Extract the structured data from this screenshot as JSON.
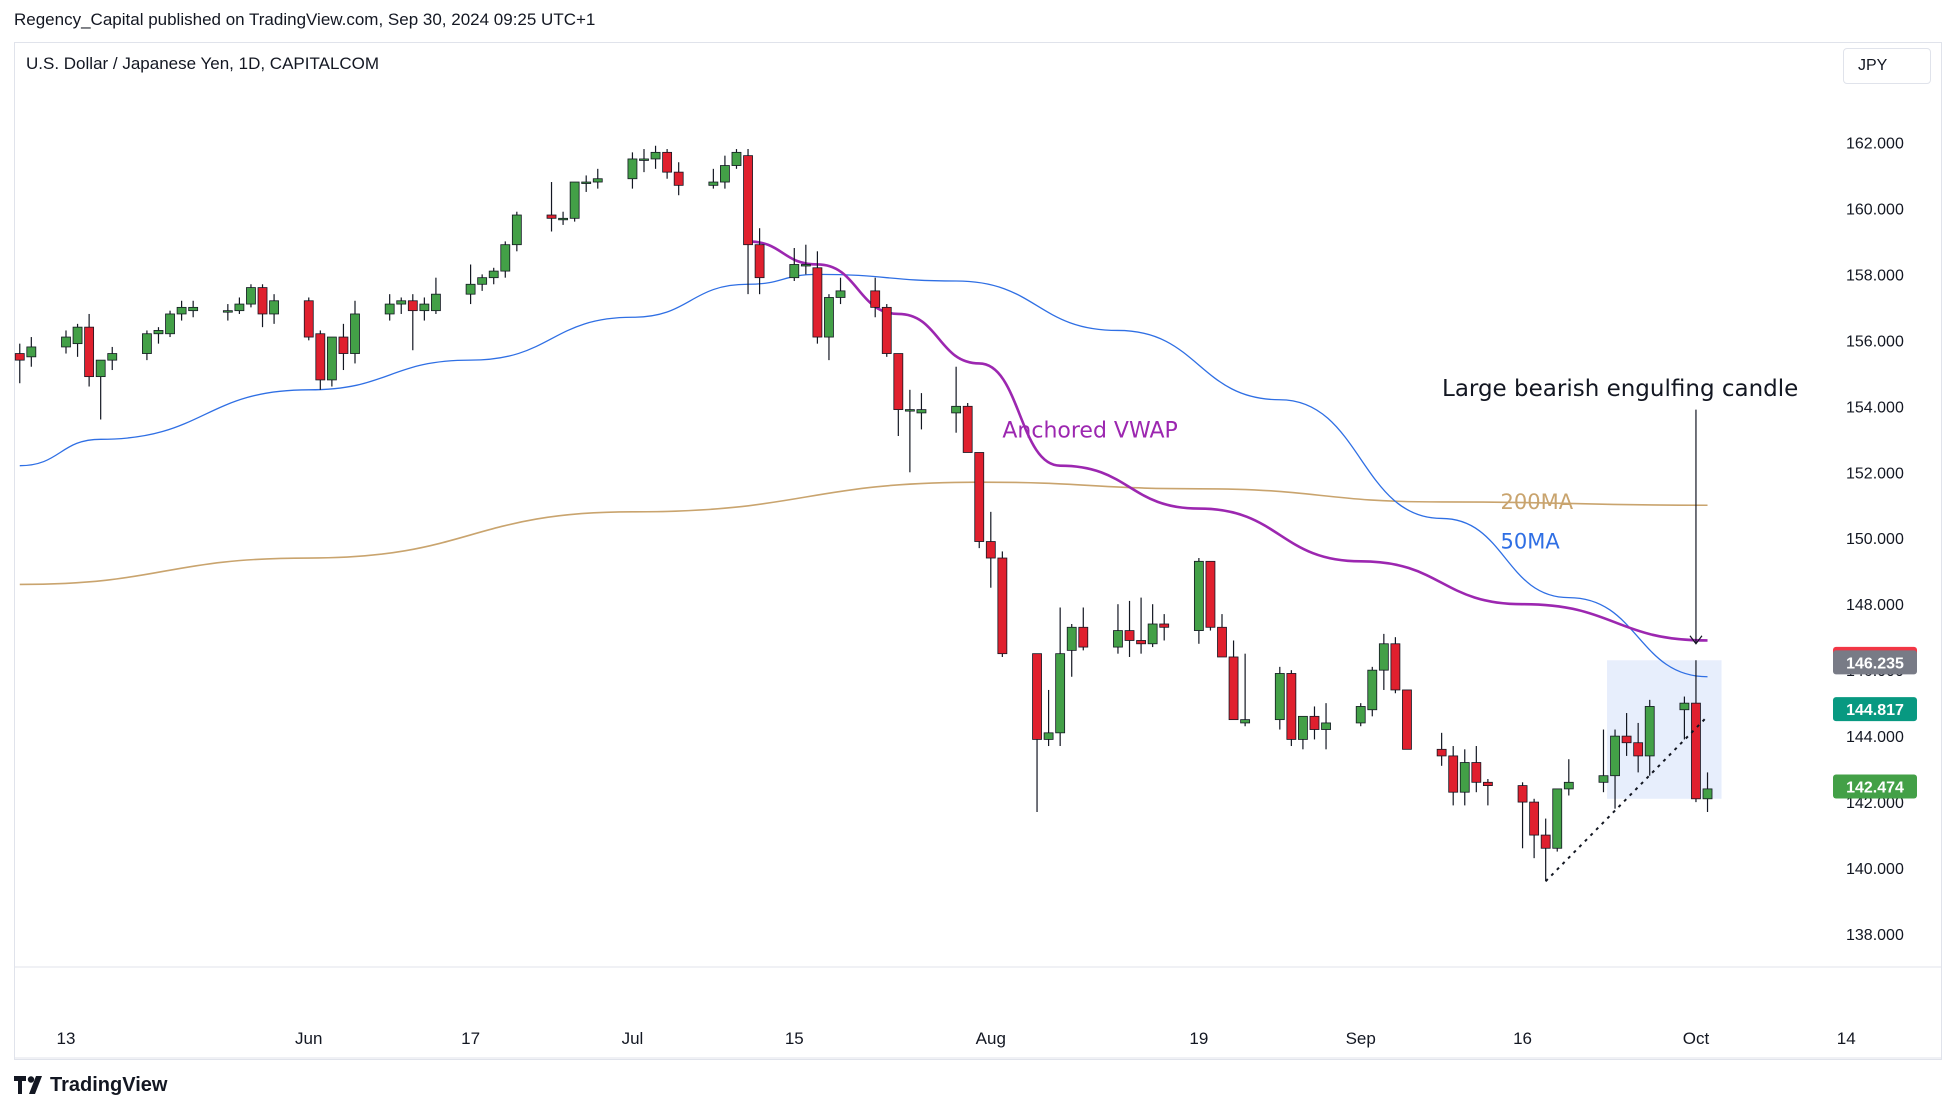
{
  "header": {
    "published": "Regency_Capital published on TradingView.com, Sep 30, 2024 09:25 UTC+1",
    "symbol": "U.S. Dollar / Japanese Yen, 1D, CAPITALCOM",
    "currency": "JPY"
  },
  "brand": {
    "name": "TradingView"
  },
  "colors": {
    "up": "#43a047",
    "down": "#e0202e",
    "ma50": "#2f6fe4",
    "ma200": "#c9a46e",
    "vwap": "#9c27b0"
  },
  "chart_data": {
    "type": "candlestick",
    "ylim": [
      137.0,
      164.5
    ],
    "y_ticks": [
      "162.000",
      "160.000",
      "158.000",
      "156.000",
      "154.000",
      "152.000",
      "150.000",
      "148.000",
      "146.000",
      "144.000",
      "142.000",
      "140.000",
      "138.000"
    ],
    "x_ticks": [
      {
        "label": "13",
        "date": "2024-05-13"
      },
      {
        "label": "Jun",
        "date": "2024-06-03"
      },
      {
        "label": "17",
        "date": "2024-06-17"
      },
      {
        "label": "Jul",
        "date": "2024-07-01"
      },
      {
        "label": "15",
        "date": "2024-07-15"
      },
      {
        "label": "Aug",
        "date": "2024-08-01"
      },
      {
        "label": "19",
        "date": "2024-08-19"
      },
      {
        "label": "Sep",
        "date": "2024-09-02"
      },
      {
        "label": "16",
        "date": "2024-09-16"
      },
      {
        "label": "Oct",
        "date": "2024-10-01"
      },
      {
        "label": "14",
        "date": "2024-10-14"
      }
    ],
    "candles": [
      [
        "2024-05-09",
        155.6,
        155.9,
        154.7,
        155.4
      ],
      [
        "2024-05-10",
        155.5,
        156.1,
        155.2,
        155.8
      ],
      [
        "2024-05-13",
        155.8,
        156.3,
        155.6,
        156.1
      ],
      [
        "2024-05-14",
        155.9,
        156.5,
        155.5,
        156.4
      ],
      [
        "2024-05-15",
        156.4,
        156.8,
        154.6,
        154.9
      ],
      [
        "2024-05-16",
        154.9,
        155.3,
        153.6,
        155.4
      ],
      [
        "2024-05-17",
        155.4,
        155.8,
        155.1,
        155.6
      ],
      [
        "2024-05-20",
        155.6,
        156.3,
        155.4,
        156.2
      ],
      [
        "2024-05-21",
        156.2,
        156.4,
        155.9,
        156.3
      ],
      [
        "2024-05-22",
        156.2,
        156.9,
        156.1,
        156.8
      ],
      [
        "2024-05-23",
        156.8,
        157.2,
        156.6,
        157.0
      ],
      [
        "2024-05-24",
        156.9,
        157.2,
        156.7,
        157.0
      ],
      [
        "2024-05-27",
        156.9,
        157.1,
        156.6,
        156.9
      ],
      [
        "2024-05-28",
        156.9,
        157.3,
        156.8,
        157.1
      ],
      [
        "2024-05-29",
        157.1,
        157.7,
        157.0,
        157.6
      ],
      [
        "2024-05-30",
        157.6,
        157.7,
        156.4,
        156.8
      ],
      [
        "2024-05-31",
        156.8,
        157.4,
        156.5,
        157.2
      ],
      [
        "2024-06-03",
        157.2,
        157.3,
        156.0,
        156.1
      ],
      [
        "2024-06-04",
        156.2,
        156.3,
        154.5,
        154.8
      ],
      [
        "2024-06-05",
        154.8,
        156.1,
        154.6,
        156.1
      ],
      [
        "2024-06-06",
        156.1,
        156.5,
        155.1,
        155.6
      ],
      [
        "2024-06-07",
        155.6,
        157.2,
        155.3,
        156.8
      ],
      [
        "2024-06-10",
        156.8,
        157.4,
        156.6,
        157.1
      ],
      [
        "2024-06-11",
        157.1,
        157.3,
        156.8,
        157.2
      ],
      [
        "2024-06-12",
        157.2,
        157.4,
        155.7,
        156.9
      ],
      [
        "2024-06-13",
        156.9,
        157.3,
        156.6,
        157.1
      ],
      [
        "2024-06-14",
        156.9,
        157.9,
        156.8,
        157.4
      ],
      [
        "2024-06-17",
        157.4,
        158.3,
        157.1,
        157.7
      ],
      [
        "2024-06-18",
        157.7,
        158.0,
        157.5,
        157.9
      ],
      [
        "2024-06-19",
        157.9,
        158.2,
        157.7,
        158.1
      ],
      [
        "2024-06-20",
        158.1,
        159.0,
        157.9,
        158.9
      ],
      [
        "2024-06-21",
        158.9,
        159.9,
        158.7,
        159.8
      ],
      [
        "2024-06-24",
        159.8,
        160.8,
        159.3,
        159.7
      ],
      [
        "2024-06-25",
        159.7,
        159.9,
        159.5,
        159.7
      ],
      [
        "2024-06-26",
        159.7,
        160.8,
        159.6,
        160.8
      ],
      [
        "2024-06-27",
        160.8,
        161.0,
        160.5,
        160.8
      ],
      [
        "2024-06-28",
        160.8,
        161.2,
        160.6,
        160.9
      ],
      [
        "2024-07-01",
        160.9,
        161.7,
        160.6,
        161.5
      ],
      [
        "2024-07-02",
        161.5,
        161.8,
        161.1,
        161.5
      ],
      [
        "2024-07-03",
        161.5,
        161.9,
        161.2,
        161.7
      ],
      [
        "2024-07-04",
        161.7,
        161.8,
        160.9,
        161.1
      ],
      [
        "2024-07-05",
        161.1,
        161.4,
        160.4,
        160.7
      ],
      [
        "2024-07-08",
        160.7,
        161.2,
        160.6,
        160.8
      ],
      [
        "2024-07-09",
        160.8,
        161.6,
        160.6,
        161.3
      ],
      [
        "2024-07-10",
        161.3,
        161.8,
        161.2,
        161.7
      ],
      [
        "2024-07-11",
        161.6,
        161.8,
        157.4,
        158.9
      ],
      [
        "2024-07-12",
        158.9,
        159.4,
        157.4,
        157.9
      ],
      [
        "2024-07-15",
        157.9,
        158.8,
        157.8,
        158.3
      ],
      [
        "2024-07-16",
        158.3,
        158.9,
        158.0,
        158.3
      ],
      [
        "2024-07-17",
        158.2,
        158.7,
        155.9,
        156.1
      ],
      [
        "2024-07-18",
        156.1,
        157.4,
        155.4,
        157.3
      ],
      [
        "2024-07-19",
        157.3,
        157.9,
        157.1,
        157.5
      ],
      [
        "2024-07-22",
        157.5,
        157.9,
        156.7,
        157.0
      ],
      [
        "2024-07-23",
        157.0,
        157.1,
        155.5,
        155.6
      ],
      [
        "2024-07-24",
        155.6,
        155.6,
        153.1,
        153.9
      ],
      [
        "2024-07-25",
        153.9,
        154.5,
        152.0,
        153.9
      ],
      [
        "2024-07-26",
        153.8,
        154.4,
        153.3,
        153.9
      ],
      [
        "2024-07-29",
        153.8,
        155.2,
        153.2,
        154.0
      ],
      [
        "2024-07-30",
        154.0,
        154.1,
        152.6,
        152.6
      ],
      [
        "2024-07-31",
        152.6,
        152.6,
        149.7,
        149.9
      ],
      [
        "2024-08-01",
        149.9,
        150.8,
        148.5,
        149.4
      ],
      [
        "2024-08-02",
        149.4,
        149.6,
        146.4,
        146.5
      ],
      [
        "2024-08-05",
        146.5,
        146.5,
        141.7,
        143.9
      ],
      [
        "2024-08-06",
        143.9,
        145.4,
        143.7,
        144.1
      ],
      [
        "2024-08-07",
        144.1,
        147.9,
        143.7,
        146.5
      ],
      [
        "2024-08-08",
        146.6,
        147.4,
        145.8,
        147.3
      ],
      [
        "2024-08-09",
        147.3,
        147.9,
        146.6,
        146.7
      ],
      [
        "2024-08-12",
        146.7,
        148.0,
        146.5,
        147.2
      ],
      [
        "2024-08-13",
        147.2,
        148.1,
        146.4,
        146.9
      ],
      [
        "2024-08-14",
        146.9,
        148.2,
        146.5,
        146.8
      ],
      [
        "2024-08-15",
        146.8,
        148.0,
        146.7,
        147.4
      ],
      [
        "2024-08-16",
        147.4,
        147.7,
        146.9,
        147.3
      ],
      [
        "2024-08-19",
        147.2,
        149.4,
        146.8,
        149.3
      ],
      [
        "2024-08-20",
        149.3,
        149.3,
        147.2,
        147.3
      ],
      [
        "2024-08-21",
        147.3,
        147.7,
        146.4,
        146.4
      ],
      [
        "2024-08-22",
        146.4,
        146.9,
        144.5,
        144.5
      ],
      [
        "2024-08-23",
        144.4,
        146.5,
        144.3,
        144.5
      ],
      [
        "2024-08-26",
        144.5,
        146.1,
        144.2,
        145.9
      ],
      [
        "2024-08-27",
        145.9,
        146.0,
        143.7,
        143.9
      ],
      [
        "2024-08-28",
        143.9,
        144.6,
        143.6,
        144.6
      ],
      [
        "2024-08-29",
        144.6,
        144.9,
        143.9,
        144.2
      ],
      [
        "2024-08-30",
        144.2,
        145.0,
        143.6,
        144.4
      ],
      [
        "2024-09-02",
        144.4,
        145.0,
        144.3,
        144.9
      ],
      [
        "2024-09-03",
        144.8,
        146.1,
        144.6,
        146.0
      ],
      [
        "2024-09-04",
        146.0,
        147.1,
        145.4,
        146.8
      ],
      [
        "2024-09-05",
        146.8,
        147.0,
        145.3,
        145.4
      ],
      [
        "2024-09-06",
        145.4,
        145.4,
        143.6,
        143.6
      ],
      [
        "2024-09-09",
        143.6,
        144.1,
        143.1,
        143.4
      ],
      [
        "2024-09-10",
        143.4,
        143.7,
        141.9,
        142.3
      ],
      [
        "2024-09-11",
        142.3,
        143.6,
        141.9,
        143.2
      ],
      [
        "2024-09-12",
        143.2,
        143.7,
        142.3,
        142.6
      ],
      [
        "2024-09-13",
        142.6,
        142.7,
        141.9,
        142.5
      ],
      [
        "2024-09-16",
        142.5,
        142.6,
        140.6,
        142.0
      ],
      [
        "2024-09-17",
        142.0,
        142.1,
        140.3,
        141.0
      ],
      [
        "2024-09-18",
        141.0,
        141.5,
        139.6,
        140.6
      ],
      [
        "2024-09-19",
        140.6,
        142.4,
        140.5,
        142.4
      ],
      [
        "2024-09-20",
        142.4,
        143.3,
        142.2,
        142.6
      ],
      [
        "2024-09-23",
        142.6,
        144.2,
        142.3,
        142.8
      ],
      [
        "2024-09-24",
        142.8,
        144.2,
        141.8,
        144.0
      ],
      [
        "2024-09-25",
        144.0,
        144.7,
        143.4,
        143.8
      ],
      [
        "2024-09-26",
        143.8,
        144.4,
        142.9,
        143.4
      ],
      [
        "2024-09-27",
        143.4,
        145.1,
        142.8,
        144.9
      ],
      [
        "2024-09-30",
        144.8,
        145.2,
        143.9,
        145.0
      ],
      [
        "2024-10-01",
        145.0,
        146.3,
        142.0,
        142.1
      ],
      [
        "2024-10-02",
        142.1,
        142.9,
        141.7,
        142.4
      ]
    ],
    "series": [
      {
        "name": "50MA",
        "color": "#2f6fe4",
        "points": [
          [
            "2024-05-09",
            152.2
          ],
          [
            "2024-05-16",
            153.0
          ],
          [
            "2024-06-03",
            154.5
          ],
          [
            "2024-06-17",
            155.4
          ],
          [
            "2024-07-01",
            156.7
          ],
          [
            "2024-07-11",
            157.7
          ],
          [
            "2024-07-17",
            158.0
          ],
          [
            "2024-07-29",
            157.8
          ],
          [
            "2024-08-12",
            156.3
          ],
          [
            "2024-08-26",
            154.2
          ],
          [
            "2024-09-09",
            150.6
          ],
          [
            "2024-09-20",
            148.2
          ],
          [
            "2024-10-02",
            145.8
          ]
        ]
      },
      {
        "name": "200MA",
        "color": "#c9a46e",
        "points": [
          [
            "2024-05-09",
            148.6
          ],
          [
            "2024-06-03",
            149.4
          ],
          [
            "2024-07-01",
            150.8
          ],
          [
            "2024-07-31",
            151.7
          ],
          [
            "2024-08-19",
            151.5
          ],
          [
            "2024-09-09",
            151.1
          ],
          [
            "2024-10-02",
            151.0
          ]
        ]
      },
      {
        "name": "Anchored VWAP",
        "color": "#9c27b0",
        "points": [
          [
            "2024-07-11",
            159.0
          ],
          [
            "2024-07-17",
            158.3
          ],
          [
            "2024-07-24",
            156.8
          ],
          [
            "2024-07-31",
            155.3
          ],
          [
            "2024-08-07",
            152.2
          ],
          [
            "2024-08-19",
            150.9
          ],
          [
            "2024-09-02",
            149.3
          ],
          [
            "2024-09-16",
            148.0
          ],
          [
            "2024-10-02",
            146.9
          ]
        ]
      }
    ],
    "annotations": {
      "pattern": "Large bearish engulfing candle",
      "vwap_label": "Anchored VWAP",
      "ma200_label": "200MA",
      "ma50_label": "50MA"
    },
    "price_labels": [
      {
        "text": "146.341",
        "value": 146.341,
        "color": "#f23645"
      },
      {
        "text": "146.235",
        "value": 146.235,
        "color": "#787b86"
      },
      {
        "text": "144.817",
        "value": 144.817,
        "color": "#089981"
      },
      {
        "text": "142.474",
        "value": 142.474,
        "color": "#43a047"
      }
    ],
    "highlight": {
      "from": "2024-09-24",
      "to": "2024-10-02",
      "y_top": 146.3,
      "y_bottom": 142.1
    },
    "trendline": {
      "from": [
        "2024-09-18",
        139.6
      ],
      "to": [
        "2024-10-02",
        144.6
      ]
    }
  }
}
